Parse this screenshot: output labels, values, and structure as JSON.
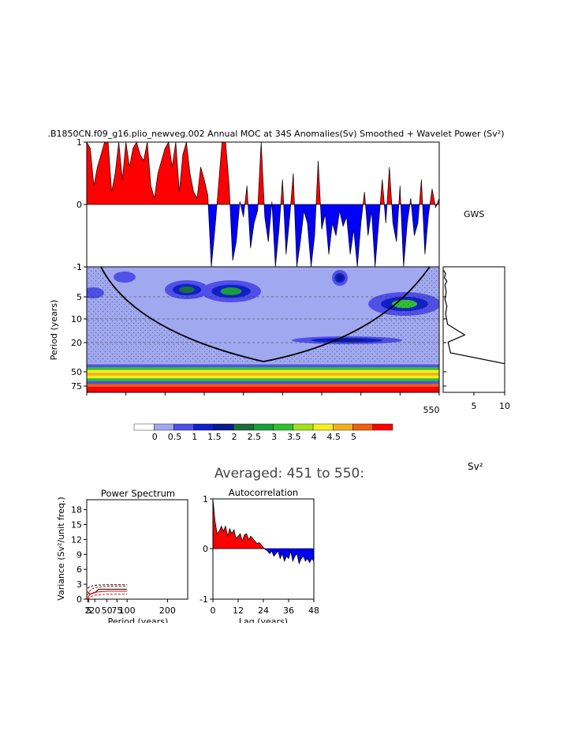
{
  "figure": {
    "title": ".B1850CN.f09_g16.plio_newveg.002 Annual MOC at 34S Anomalies(Sv) Smoothed + Wavelet Power (Sv²)",
    "gws_label": "GWS",
    "averaged_label": "Averaged: 451 to 550:",
    "units_label": "Sv²"
  },
  "chart_data": [
    {
      "type": "area",
      "name": "anomaly-timeseries",
      "ylim": [
        -1,
        1
      ],
      "y_ticks": [
        "-1",
        "0",
        "1"
      ],
      "x_range": [
        451,
        550
      ],
      "colors": {
        "positive": "#ff0000",
        "negative": "#0000ff"
      },
      "values": [
        1,
        0.9,
        0.3,
        0.6,
        0.8,
        1,
        1,
        0.2,
        0.5,
        1,
        0.4,
        1,
        0.6,
        0.9,
        1,
        0.8,
        0.7,
        1,
        0.3,
        0.1,
        0.5,
        0.7,
        0.9,
        1,
        0.6,
        1,
        0.2,
        0.8,
        1,
        0.5,
        0.2,
        0.1,
        0.6,
        0.4,
        0.15,
        -1,
        -0.4,
        0.3,
        1,
        1,
        0.3,
        -0.9,
        -0.6,
        0.05,
        -0.2,
        0.3,
        -0.7,
        -0.3,
        -0.1,
        1,
        -0.2,
        -0.6,
        0.05,
        -1,
        -0.4,
        0.4,
        -0.8,
        -0.2,
        0.5,
        -1,
        -0.6,
        -0.1,
        -0.3,
        -1,
        -0.5,
        0.7,
        -0.4,
        -0.15,
        -0.8,
        -0.3,
        -0.5,
        -0.1,
        -0.35,
        -0.2,
        -0.8,
        -0.4,
        -1,
        -0.3,
        0.2,
        -0.5,
        -0.1,
        -1,
        -0.3,
        0.4,
        -0.3,
        0.6,
        -0.3,
        -0.6,
        0.3,
        -1,
        -0.3,
        0.1,
        -0.5,
        -0.3,
        0.4,
        -0.8,
        -0.15,
        0.25,
        -0.05,
        0.1
      ]
    },
    {
      "type": "heatmap",
      "name": "wavelet-power",
      "ylabel": "Period (years)",
      "y_ticks": [
        "1",
        "5",
        "10",
        "20",
        "50",
        "75"
      ],
      "x_ticks": [
        "550"
      ],
      "levels": [
        "0",
        "0.5",
        "1",
        "1.5",
        "2",
        "2.5",
        "3",
        "3.5",
        "4",
        "4.5",
        "5"
      ],
      "colorbar_colors": [
        "#ffffff",
        "#a0a8f0",
        "#5050e8",
        "#1020c8",
        "#0a1a90",
        "#1a6e3a",
        "#1a9e3a",
        "#30c030",
        "#a0e020",
        "#f0f020",
        "#f0b020",
        "#f06010",
        "#ff0000"
      ],
      "background_level_color": "#a0a8f0",
      "bands_period_50_to_80": [
        "#a0a8f0",
        "#5050e8",
        "#30c030",
        "#f0f020",
        "#f0b020",
        "#f0f020",
        "#30c030",
        "#5050e8",
        "#f06010",
        "#ff0000",
        "#ff0000"
      ],
      "high_power_patches": [
        {
          "period": 4,
          "peak_level": "2",
          "years": "456-470"
        },
        {
          "period": 4,
          "peak_level": "2.5",
          "years": "484-503"
        },
        {
          "period": 3,
          "peak_level": "1.5",
          "years": "519-524"
        },
        {
          "period": 6,
          "peak_level": "3",
          "years": "535-550"
        },
        {
          "period": 20,
          "peak_level": "1.5",
          "years": "510-535"
        }
      ]
    },
    {
      "type": "line",
      "name": "global-wavelet-spectrum",
      "title": "GWS",
      "xlim": [
        0,
        10
      ],
      "x_ticks": [
        "5",
        "10"
      ],
      "points": [
        [
          0.1,
          1
        ],
        [
          0.4,
          2
        ],
        [
          0.2,
          3
        ],
        [
          0.6,
          4
        ],
        [
          0.3,
          5
        ],
        [
          0.5,
          7
        ],
        [
          0.3,
          9
        ],
        [
          0.6,
          11
        ],
        [
          0.4,
          13
        ],
        [
          0.7,
          16
        ],
        [
          3.5,
          19
        ],
        [
          0.8,
          21
        ],
        [
          1.2,
          24
        ],
        [
          10,
          27
        ]
      ]
    },
    {
      "type": "line",
      "name": "power-spectrum",
      "title": "Power Spectrum",
      "xlabel": "Period (years)",
      "ylabel": "Variance (Sv²/unit freq.)",
      "ylim": [
        0,
        20
      ],
      "xlim": [
        0,
        250
      ],
      "y_ticks": [
        "0",
        "3",
        "6",
        "9",
        "12",
        "15",
        "18"
      ],
      "x_ticks": [
        "2",
        "5",
        "20",
        "50",
        "75",
        "100",
        "200"
      ],
      "series": [
        {
          "style": "solid-black",
          "points": [
            [
              2,
              1.5
            ],
            [
              8,
              1
            ],
            [
              20,
              1.3
            ],
            [
              30,
              2
            ],
            [
              50,
              2
            ],
            [
              75,
              2
            ],
            [
              100,
              2
            ]
          ]
        },
        {
          "style": "solid-red",
          "points": [
            [
              2,
              0.3
            ],
            [
              10,
              1.1
            ],
            [
              20,
              1.4
            ],
            [
              50,
              1.6
            ],
            [
              100,
              1.6
            ]
          ]
        },
        {
          "style": "dash-red",
          "points": [
            [
              2,
              0.8
            ],
            [
              10,
              2
            ],
            [
              20,
              2.3
            ],
            [
              50,
              2.6
            ],
            [
              100,
              2.6
            ]
          ]
        },
        {
          "style": "dash-red",
          "points": [
            [
              2,
              0.1
            ],
            [
              10,
              0.5
            ],
            [
              20,
              0.8
            ],
            [
              50,
              1
            ],
            [
              100,
              1
            ]
          ]
        },
        {
          "style": "dash-black",
          "points": [
            [
              2,
              2.2
            ],
            [
              10,
              2.6
            ],
            [
              20,
              2.8
            ],
            [
              50,
              2.9
            ],
            [
              100,
              2.9
            ]
          ]
        }
      ]
    },
    {
      "type": "area",
      "name": "autocorrelation",
      "title": "Autocorrelation",
      "xlabel": "Lag (years)",
      "ylim": [
        -1,
        1
      ],
      "xlim": [
        0,
        48
      ],
      "y_ticks": [
        "-1",
        "0",
        "1"
      ],
      "x_ticks": [
        "0",
        "12",
        "24",
        "36",
        "48"
      ],
      "colors": {
        "positive": "#ff0000",
        "negative": "#0000ff"
      },
      "values": [
        1,
        0.55,
        0.3,
        0.35,
        0.45,
        0.35,
        0.45,
        0.25,
        0.4,
        0.3,
        0.38,
        0.2,
        0.25,
        0.3,
        0.15,
        0.28,
        0.3,
        0.18,
        0.25,
        0.2,
        0.15,
        0.1,
        0.12,
        0.08,
        0.02,
        -0.02,
        -0.05,
        -0.1,
        -0.05,
        -0.15,
        -0.1,
        -0.05,
        -0.2,
        -0.1,
        -0.25,
        -0.15,
        -0.2,
        -0.05,
        -0.25,
        -0.15,
        -0.1,
        -0.3,
        -0.2,
        -0.15,
        -0.25,
        -0.2,
        -0.28,
        -0.2,
        -0.25
      ]
    }
  ]
}
